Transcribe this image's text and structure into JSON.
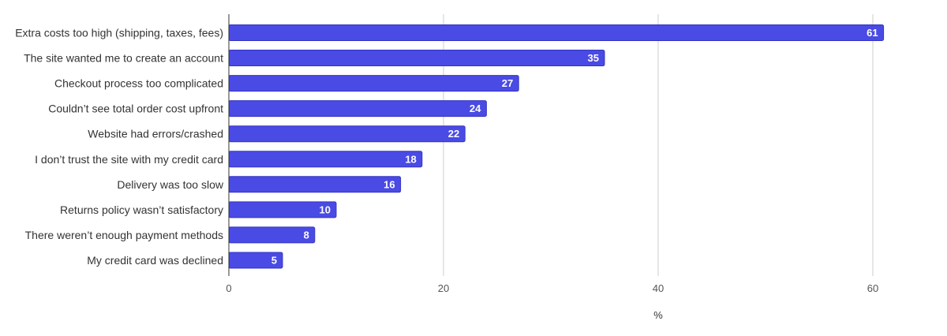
{
  "chart_data": {
    "type": "bar",
    "orientation": "horizontal",
    "categories": [
      "Extra costs too high (shipping, taxes, fees)",
      "The site wanted me to create an account",
      "Checkout process too complicated",
      "Couldn’t see total order cost upfront",
      "Website had errors/crashed",
      "I don’t trust the site with my credit card",
      "Delivery was too slow",
      "Returns policy wasn’t satisfactory",
      "There weren’t enough payment methods",
      "My credit card was declined"
    ],
    "values": [
      61,
      35,
      27,
      24,
      22,
      18,
      16,
      10,
      8,
      5
    ],
    "title": "",
    "xlabel": "%",
    "ylabel": "",
    "xlim": [
      0,
      65
    ],
    "xticks": [
      0,
      20,
      40,
      60
    ],
    "grid": true,
    "data_labels": true,
    "bar_color": "#4a4ae4",
    "bar_edge_color": "#3434c4",
    "grid_color": "#cccccc"
  }
}
